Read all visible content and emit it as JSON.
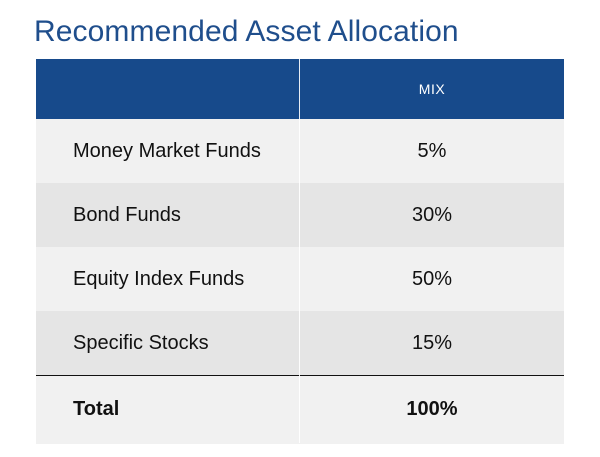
{
  "title": "Recommended Asset Allocation",
  "table": {
    "header": {
      "label": "",
      "value": "MIX"
    },
    "rows": [
      {
        "label": "Money Market Funds",
        "value": "5%"
      },
      {
        "label": "Bond Funds",
        "value": "30%"
      },
      {
        "label": "Equity Index Funds",
        "value": "50%"
      },
      {
        "label": "Specific Stocks",
        "value": "15%"
      }
    ],
    "total": {
      "label": "Total",
      "value": "100%"
    }
  },
  "colors": {
    "title": "#1f4e8c",
    "header_background": "#174a8b",
    "row_light": "#f1f1f1",
    "row_dark": "#e5e5e5"
  }
}
